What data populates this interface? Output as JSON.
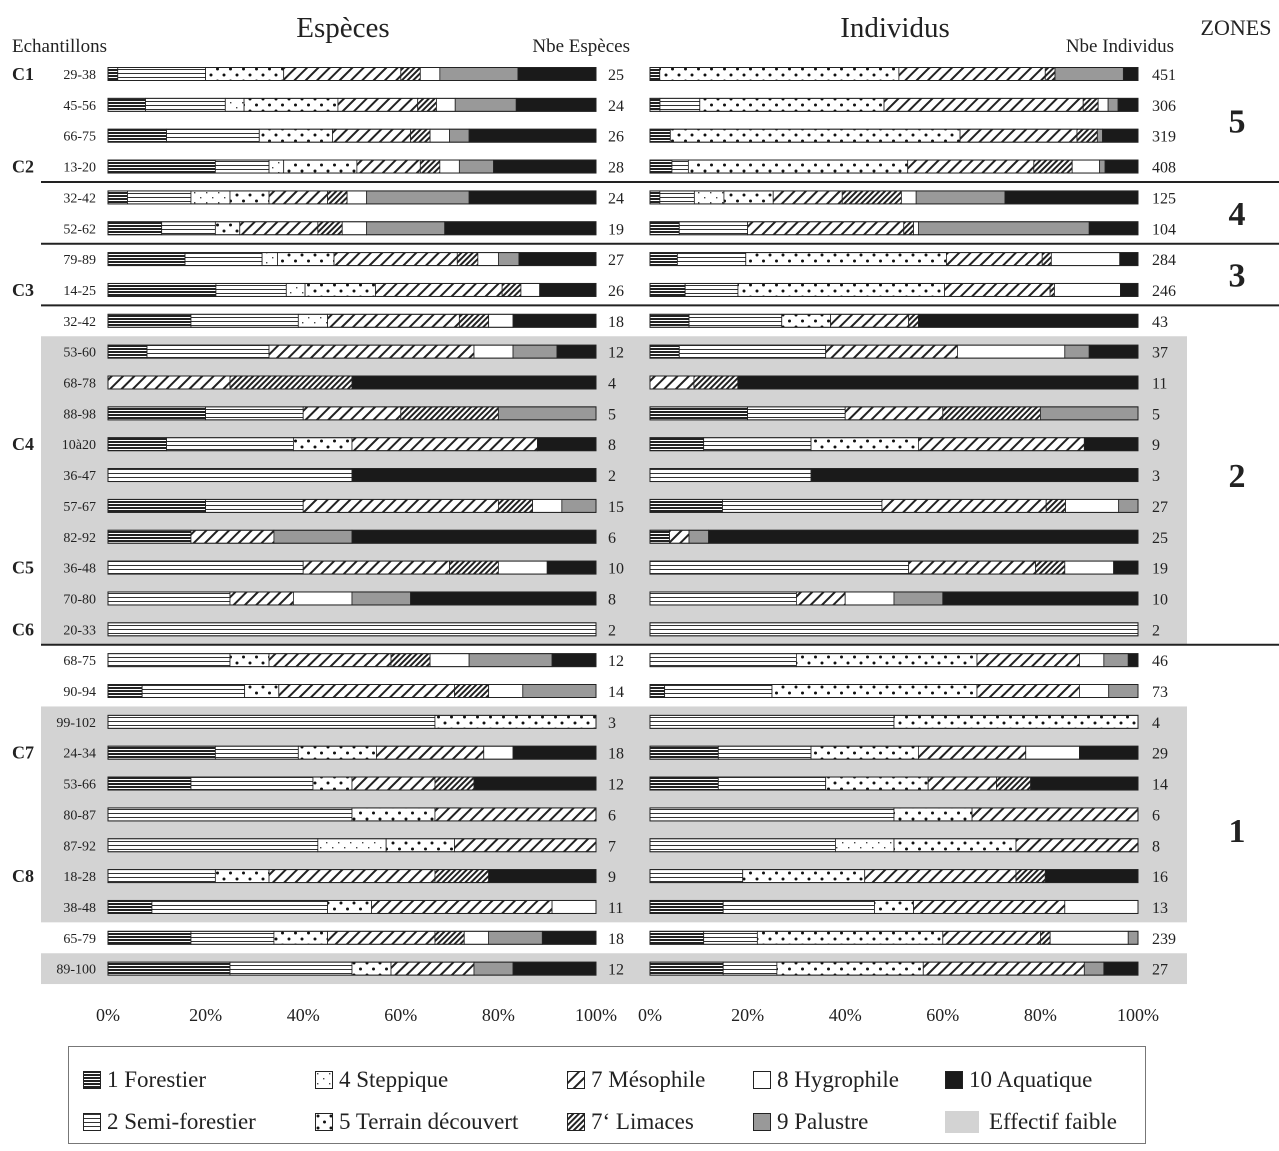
{
  "chart_data": {
    "type": "bar",
    "stacking": "percent",
    "orientation": "horizontal",
    "panels": [
      {
        "key": "species",
        "title": "Espèces",
        "count_header": "Nbe Espèces"
      },
      {
        "key": "individuals",
        "title": "Individus",
        "count_header": "Nbe Individus"
      }
    ],
    "row_header": "Echantillons",
    "zones_header": "ZONES",
    "x_ticks": [
      "0%",
      "20%",
      "40%",
      "60%",
      "80%",
      "100%"
    ],
    "xlim": [
      0,
      100
    ],
    "categories": [
      {
        "key": "1",
        "label": "1 Forestier",
        "pattern": "dense-horizontal"
      },
      {
        "key": "2",
        "label": "2 Semi-forestier",
        "pattern": "horizontal"
      },
      {
        "key": "4",
        "label": "4 Steppique",
        "pattern": "sparse-dots"
      },
      {
        "key": "5",
        "label": "5 Terrain découvert",
        "pattern": "dots"
      },
      {
        "key": "7",
        "label": "7 Mésophile",
        "pattern": "diagonal"
      },
      {
        "key": "7L",
        "label": "7‘ Limaces",
        "pattern": "dense-diagonal"
      },
      {
        "key": "8",
        "label": "8 Hygrophile",
        "color": "#ffffff"
      },
      {
        "key": "9",
        "label": "9 Palustre",
        "color": "#999999"
      },
      {
        "key": "10",
        "label": "10 Aquatique",
        "color": "#1a1a1a"
      }
    ],
    "low_count_legend": {
      "label": "Effectif faible",
      "color": "#d3d3d3"
    },
    "zones": [
      {
        "label": "5",
        "rows": [
          0,
          3
        ]
      },
      {
        "label": "4",
        "rows": [
          4,
          5
        ]
      },
      {
        "label": "3",
        "rows": [
          6,
          7
        ]
      },
      {
        "label": "2",
        "rows": [
          8,
          18
        ]
      },
      {
        "label": "1",
        "rows": [
          19,
          30
        ]
      }
    ],
    "rows": [
      {
        "core": "C1",
        "sample": "29-38",
        "low": false,
        "species_count": "25",
        "individuals_count": "451",
        "species": [
          2,
          18,
          0,
          16,
          24,
          4,
          4,
          16,
          16
        ],
        "individuals": [
          2,
          0,
          0,
          49,
          30,
          2,
          0,
          14,
          3
        ]
      },
      {
        "core": "",
        "sample": "45-56",
        "low": false,
        "species_count": "24",
        "individuals_count": "306",
        "species": [
          8,
          17,
          4,
          20,
          17,
          4,
          4,
          13,
          17
        ],
        "individuals": [
          2,
          8,
          0,
          37,
          40,
          3,
          2,
          2,
          4
        ]
      },
      {
        "core": "",
        "sample": "66-75",
        "low": false,
        "species_count": "26",
        "individuals_count": "319",
        "species": [
          12,
          19,
          0,
          15,
          16,
          4,
          4,
          4,
          26
        ],
        "individuals": [
          4,
          0,
          0,
          57,
          23,
          4,
          0,
          1,
          7
        ]
      },
      {
        "core": "C2",
        "sample": "13-20",
        "low": false,
        "species_count": "28",
        "individuals_count": "408",
        "species": [
          22,
          11,
          3,
          15,
          13,
          4,
          4,
          7,
          21
        ],
        "individuals": [
          4,
          3,
          0,
          40,
          23,
          7,
          5,
          1,
          6
        ]
      },
      {
        "core": "",
        "sample": "32-42",
        "low": false,
        "species_count": "24",
        "individuals_count": "125",
        "species": [
          4,
          13,
          8,
          8,
          12,
          4,
          4,
          21,
          26
        ],
        "individuals": [
          2,
          7,
          6,
          10,
          14,
          12,
          3,
          18,
          27
        ]
      },
      {
        "core": "",
        "sample": "52-62",
        "low": false,
        "species_count": "19",
        "individuals_count": "104",
        "species": [
          11,
          11,
          0,
          5,
          16,
          5,
          5,
          16,
          31
        ],
        "individuals": [
          6,
          14,
          0,
          0,
          32,
          2,
          1,
          35,
          10
        ]
      },
      {
        "core": "",
        "sample": "79-89",
        "low": false,
        "species_count": "27",
        "individuals_count": "284",
        "species": [
          15,
          15,
          3,
          11,
          24,
          4,
          4,
          4,
          15
        ],
        "individuals": [
          6,
          15,
          0,
          44,
          21,
          2,
          15,
          0,
          4
        ]
      },
      {
        "core": "C3",
        "sample": "14-25",
        "low": false,
        "species_count": "26",
        "individuals_count": "246",
        "species": [
          23,
          15,
          4,
          15,
          27,
          4,
          4,
          0,
          12
        ],
        "individuals": [
          8,
          12,
          0,
          47,
          24,
          1,
          15,
          0,
          4
        ]
      },
      {
        "core": "",
        "sample": "32-42",
        "low": false,
        "species_count": "18",
        "individuals_count": "43",
        "species": [
          17,
          22,
          6,
          0,
          27,
          6,
          5,
          0,
          17
        ],
        "individuals": [
          8,
          19,
          0,
          10,
          16,
          2,
          0,
          0,
          45
        ]
      },
      {
        "core": "",
        "sample": "53-60",
        "low": true,
        "species_count": "12",
        "individuals_count": "37",
        "species": [
          8,
          25,
          0,
          0,
          42,
          0,
          8,
          9,
          8
        ],
        "individuals": [
          6,
          30,
          0,
          0,
          27,
          0,
          22,
          5,
          10
        ]
      },
      {
        "core": "",
        "sample": "68-78",
        "low": true,
        "species_count": "4",
        "individuals_count": "11",
        "species": [
          0,
          0,
          0,
          0,
          25,
          25,
          0,
          0,
          50
        ],
        "individuals": [
          0,
          0,
          0,
          0,
          9,
          9,
          0,
          0,
          82
        ]
      },
      {
        "core": "",
        "sample": "88-98",
        "low": true,
        "species_count": "5",
        "individuals_count": "5",
        "species": [
          20,
          20,
          0,
          0,
          20,
          20,
          0,
          20,
          0
        ],
        "individuals": [
          20,
          20,
          0,
          0,
          20,
          20,
          0,
          20,
          0
        ]
      },
      {
        "core": "C4",
        "sample": "10à20",
        "low": true,
        "species_count": "8",
        "individuals_count": "9",
        "species": [
          12,
          26,
          0,
          12,
          38,
          0,
          0,
          0,
          12
        ],
        "individuals": [
          11,
          22,
          0,
          22,
          34,
          0,
          0,
          0,
          11
        ]
      },
      {
        "core": "",
        "sample": "36-47",
        "low": true,
        "species_count": "2",
        "individuals_count": "3",
        "species": [
          0,
          50,
          0,
          0,
          0,
          0,
          0,
          0,
          50
        ],
        "individuals": [
          0,
          33,
          0,
          0,
          0,
          0,
          0,
          0,
          67
        ]
      },
      {
        "core": "",
        "sample": "57-67",
        "low": true,
        "species_count": "15",
        "individuals_count": "27",
        "species": [
          20,
          20,
          0,
          0,
          40,
          7,
          6,
          7,
          0
        ],
        "individuals": [
          15,
          33,
          0,
          0,
          34,
          4,
          11,
          4,
          0
        ]
      },
      {
        "core": "",
        "sample": "82-92",
        "low": true,
        "species_count": "6",
        "individuals_count": "25",
        "species": [
          17,
          0,
          0,
          0,
          17,
          0,
          0,
          16,
          50
        ],
        "individuals": [
          4,
          0,
          0,
          0,
          4,
          0,
          0,
          4,
          88
        ]
      },
      {
        "core": "C5",
        "sample": "36-48",
        "low": true,
        "species_count": "10",
        "individuals_count": "19",
        "species": [
          0,
          40,
          0,
          0,
          30,
          10,
          10,
          0,
          10
        ],
        "individuals": [
          0,
          53,
          0,
          0,
          26,
          6,
          10,
          0,
          5
        ]
      },
      {
        "core": "",
        "sample": "70-80",
        "low": true,
        "species_count": "8",
        "individuals_count": "10",
        "species": [
          0,
          25,
          0,
          0,
          13,
          0,
          12,
          12,
          38
        ],
        "individuals": [
          0,
          30,
          0,
          0,
          10,
          0,
          10,
          10,
          40
        ]
      },
      {
        "core": "C6",
        "sample": "20-33",
        "low": true,
        "species_count": "2",
        "individuals_count": "2",
        "species": [
          0,
          100,
          0,
          0,
          0,
          0,
          0,
          0,
          0
        ],
        "individuals": [
          0,
          100,
          0,
          0,
          0,
          0,
          0,
          0,
          0
        ]
      },
      {
        "core": "",
        "sample": "68-75",
        "low": false,
        "species_count": "12",
        "individuals_count": "46",
        "species": [
          0,
          25,
          0,
          8,
          25,
          8,
          8,
          17,
          9
        ],
        "individuals": [
          0,
          30,
          0,
          37,
          21,
          0,
          5,
          5,
          2
        ]
      },
      {
        "core": "",
        "sample": "90-94",
        "low": false,
        "species_count": "14",
        "individuals_count": "73",
        "species": [
          7,
          21,
          0,
          7,
          36,
          7,
          7,
          15,
          0
        ],
        "individuals": [
          3,
          22,
          0,
          42,
          21,
          0,
          6,
          6,
          0
        ]
      },
      {
        "core": "",
        "sample": "99-102",
        "low": true,
        "species_count": "3",
        "individuals_count": "4",
        "species": [
          0,
          67,
          0,
          33,
          0,
          0,
          0,
          0,
          0
        ],
        "individuals": [
          0,
          50,
          0,
          50,
          0,
          0,
          0,
          0,
          0
        ]
      },
      {
        "core": "C7",
        "sample": "24-34",
        "low": true,
        "species_count": "18",
        "individuals_count": "29",
        "species": [
          22,
          17,
          0,
          16,
          22,
          0,
          6,
          0,
          17
        ],
        "individuals": [
          14,
          19,
          0,
          22,
          22,
          0,
          11,
          0,
          12
        ]
      },
      {
        "core": "",
        "sample": "53-66",
        "low": true,
        "species_count": "12",
        "individuals_count": "14",
        "species": [
          17,
          25,
          0,
          8,
          17,
          8,
          0,
          0,
          25
        ],
        "individuals": [
          14,
          22,
          0,
          21,
          14,
          7,
          0,
          0,
          22
        ]
      },
      {
        "core": "",
        "sample": "80-87",
        "low": true,
        "species_count": "6",
        "individuals_count": "6",
        "species": [
          0,
          50,
          0,
          17,
          33,
          0,
          0,
          0,
          0
        ],
        "individuals": [
          0,
          50,
          0,
          16,
          34,
          0,
          0,
          0,
          0
        ]
      },
      {
        "core": "",
        "sample": "87-92",
        "low": true,
        "species_count": "7",
        "individuals_count": "8",
        "species": [
          0,
          43,
          14,
          14,
          29,
          0,
          0,
          0,
          0
        ],
        "individuals": [
          0,
          38,
          12,
          25,
          25,
          0,
          0,
          0,
          0
        ]
      },
      {
        "core": "C8",
        "sample": "18-28",
        "low": true,
        "species_count": "9",
        "individuals_count": "16",
        "species": [
          0,
          22,
          0,
          11,
          34,
          11,
          0,
          0,
          22
        ],
        "individuals": [
          0,
          19,
          0,
          25,
          31,
          6,
          0,
          0,
          19
        ]
      },
      {
        "core": "",
        "sample": "38-48",
        "low": true,
        "species_count": "11",
        "individuals_count": "13",
        "species": [
          9,
          36,
          0,
          9,
          37,
          0,
          9,
          0,
          0
        ],
        "individuals": [
          15,
          31,
          0,
          8,
          31,
          0,
          15,
          0,
          0
        ]
      },
      {
        "core": "",
        "sample": "65-79",
        "low": false,
        "species_count": "18",
        "individuals_count": "239",
        "species": [
          17,
          17,
          0,
          11,
          22,
          6,
          5,
          11,
          11
        ],
        "individuals": [
          11,
          11,
          0,
          38,
          20,
          2,
          16,
          2,
          0
        ]
      },
      {
        "core": "",
        "sample": "89-100",
        "low": true,
        "species_count": "12",
        "individuals_count": "27",
        "species": [
          25,
          25,
          0,
          8,
          17,
          0,
          0,
          8,
          17
        ],
        "individuals": [
          15,
          11,
          0,
          30,
          33,
          0,
          0,
          4,
          7
        ]
      }
    ]
  }
}
